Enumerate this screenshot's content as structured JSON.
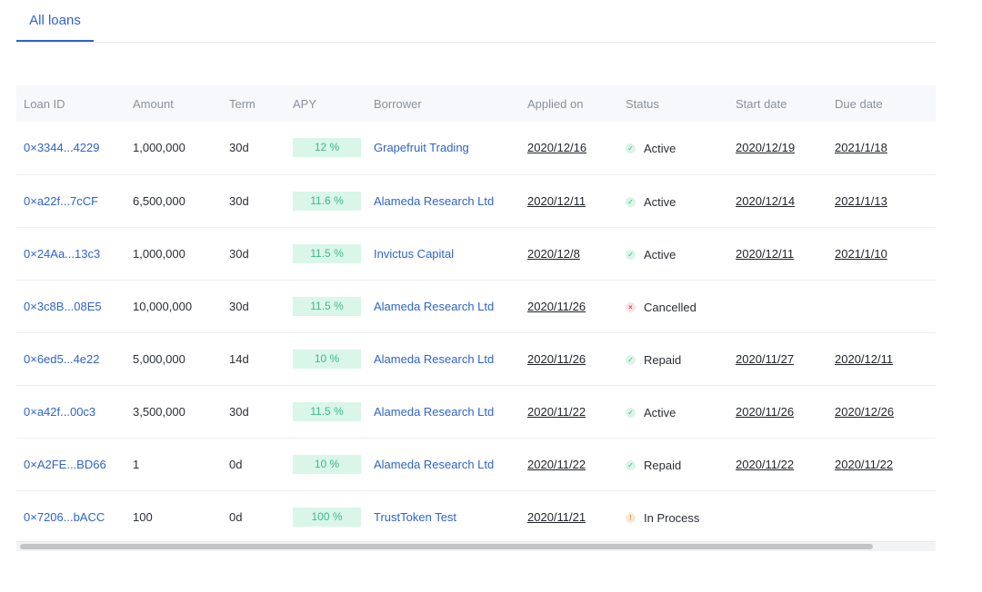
{
  "tabs": [
    {
      "label": "All loans"
    }
  ],
  "columns": [
    "Loan ID",
    "Amount",
    "Term",
    "APY",
    "Borrower",
    "Applied on",
    "Status",
    "Start date",
    "Due date"
  ],
  "rows": [
    {
      "loan_id": "0×3344...4229",
      "amount": "1,000,000",
      "term": "30d",
      "apy": "12 %",
      "borrower": "Grapefruit Trading",
      "applied_on": "2020/12/16",
      "status": "Active",
      "start_date": "2020/12/19",
      "due_date": "2021/1/18"
    },
    {
      "loan_id": "0×a22f...7cCF",
      "amount": "6,500,000",
      "term": "30d",
      "apy": "11.6 %",
      "borrower": "Alameda Research Ltd",
      "applied_on": "2020/12/11",
      "status": "Active",
      "start_date": "2020/12/14",
      "due_date": "2021/1/13"
    },
    {
      "loan_id": "0×24Aa...13c3",
      "amount": "1,000,000",
      "term": "30d",
      "apy": "11.5 %",
      "borrower": "Invictus Capital",
      "applied_on": "2020/12/8",
      "status": "Active",
      "start_date": "2020/12/11",
      "due_date": "2021/1/10"
    },
    {
      "loan_id": "0×3c8B...08E5",
      "amount": "10,000,000",
      "term": "30d",
      "apy": "11.5 %",
      "borrower": "Alameda Research Ltd",
      "applied_on": "2020/11/26",
      "status": "Cancelled",
      "start_date": "",
      "due_date": ""
    },
    {
      "loan_id": "0×6ed5...4e22",
      "amount": "5,000,000",
      "term": "14d",
      "apy": "10 %",
      "borrower": "Alameda Research Ltd",
      "applied_on": "2020/11/26",
      "status": "Repaid",
      "start_date": "2020/11/27",
      "due_date": "2020/12/11"
    },
    {
      "loan_id": "0×a42f...00c3",
      "amount": "3,500,000",
      "term": "30d",
      "apy": "11.5 %",
      "borrower": "Alameda Research Ltd",
      "applied_on": "2020/11/22",
      "status": "Active",
      "start_date": "2020/11/26",
      "due_date": "2020/12/26"
    },
    {
      "loan_id": "0×A2FE...BD66",
      "amount": "1",
      "term": "0d",
      "apy": "10 %",
      "borrower": "Alameda Research Ltd",
      "applied_on": "2020/11/22",
      "status": "Repaid",
      "start_date": "2020/11/22",
      "due_date": "2020/11/22"
    },
    {
      "loan_id": "0×7206...bACC",
      "amount": "100",
      "term": "0d",
      "apy": "100 %",
      "borrower": "TrustToken Test",
      "applied_on": "2020/11/21",
      "status": "In Process",
      "start_date": "",
      "due_date": ""
    }
  ],
  "status_icons": {
    "Active": "check-icon",
    "Repaid": "check-icon",
    "Cancelled": "cross-icon",
    "In Process": "exclamation-icon"
  },
  "colors": {
    "accent": "#2f63cc",
    "apy_bg": "#d9f6e9",
    "apy_text": "#3cb98c",
    "success": "#2fb57a",
    "error": "#e0453f",
    "warning": "#ef8a2d"
  }
}
